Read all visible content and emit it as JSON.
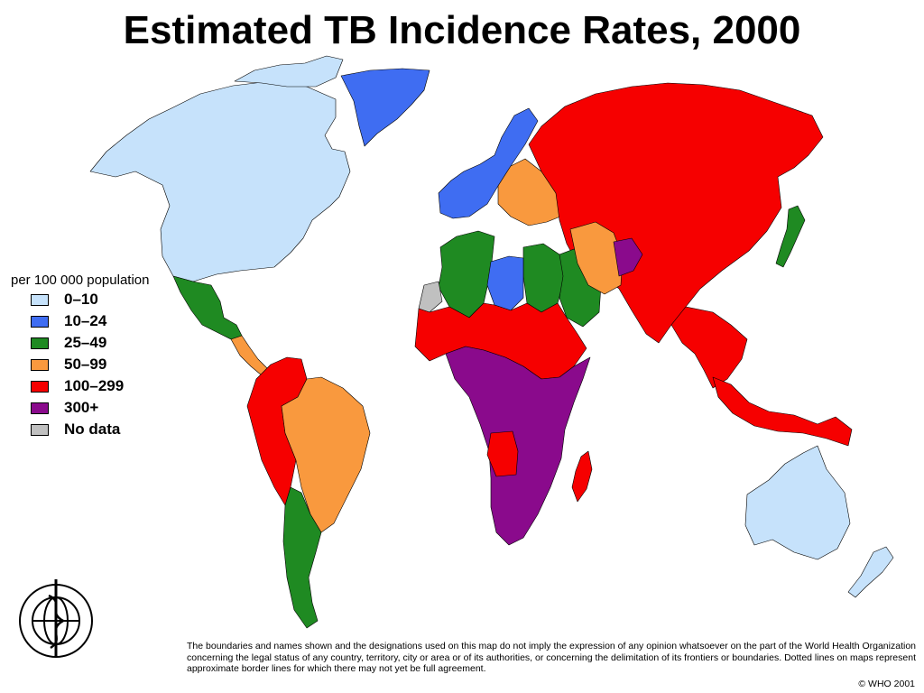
{
  "title": "Estimated TB Incidence Rates, 2000",
  "legend": {
    "heading": "per 100 000 population",
    "items": [
      {
        "label": "0–10",
        "color": "#c6e2fb"
      },
      {
        "label": "10–24",
        "color": "#3f6df2"
      },
      {
        "label": "25–49",
        "color": "#1f8a22"
      },
      {
        "label": "50–99",
        "color": "#f9993e"
      },
      {
        "label": "100–299",
        "color": "#f60000"
      },
      {
        "label": "300+",
        "color": "#8a0a8c"
      },
      {
        "label": "No data",
        "color": "#c0c0c0"
      }
    ]
  },
  "regions": [
    {
      "name": "North America",
      "category": "0–10"
    },
    {
      "name": "Greenland",
      "category": "10–24"
    },
    {
      "name": "Mexico",
      "category": "25–49"
    },
    {
      "name": "Central America",
      "category": "50–99"
    },
    {
      "name": "Brazil",
      "category": "50–99"
    },
    {
      "name": "Andean South America",
      "category": "100–299"
    },
    {
      "name": "Southern Cone",
      "category": "25–49"
    },
    {
      "name": "Western Europe",
      "category": "10–24"
    },
    {
      "name": "Eastern Europe",
      "category": "50–99"
    },
    {
      "name": "Russia and North Asia",
      "category": "100–299"
    },
    {
      "name": "North Africa",
      "category": "25–49"
    },
    {
      "name": "Libya",
      "category": "10–24"
    },
    {
      "name": "Western Sahara",
      "category": "No data"
    },
    {
      "name": "Arabian Peninsula",
      "category": "25–49"
    },
    {
      "name": "Iran",
      "category": "50–99"
    },
    {
      "name": "Afghanistan",
      "category": "300+"
    },
    {
      "name": "Sub-Saharan Africa (east and south)",
      "category": "300+"
    },
    {
      "name": "West and Central Africa",
      "category": "100–299"
    },
    {
      "name": "Madagascar",
      "category": "100–299"
    },
    {
      "name": "Japan",
      "category": "25–49"
    },
    {
      "name": "Australia",
      "category": "0–10"
    },
    {
      "name": "New Zealand",
      "category": "0–10"
    }
  ],
  "disclaimer": "The boundaries and names shown and the designations used on this map do not imply the expression of any opinion whatsoever on the part of the World Health Organization concerning the legal status of any country, territory, city or area or of its authorities, or concerning the delimitation of its frontiers or boundaries. Dotted lines on maps represent approximate border lines for which there may not yet be full agreement.",
  "copyright": "© WHO 2001",
  "colors": {
    "border": "#000000",
    "background": "#ffffff"
  }
}
